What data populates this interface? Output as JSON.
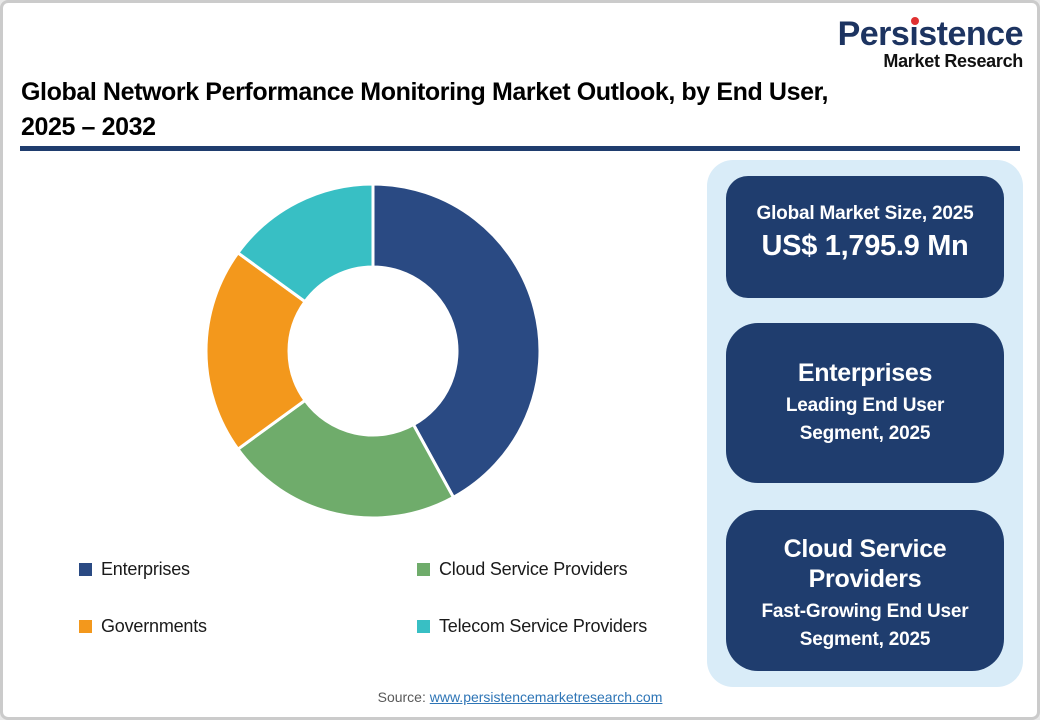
{
  "logo": {
    "name": "Persistence",
    "tagline": "Market Research"
  },
  "title": {
    "line1": "Global Network Performance Monitoring Market Outlook, by End User,",
    "line2": "2025 – 2032"
  },
  "chart_data": {
    "type": "pie",
    "subtype": "donut",
    "title": "Global Network Performance Monitoring Market Outlook, by End User, 2025 – 2032",
    "categories": [
      "Enterprises",
      "Cloud Service Providers",
      "Governments",
      "Telecom Service Providers"
    ],
    "values": [
      42,
      23,
      20,
      15
    ],
    "unit": "% share of 2025 market (estimated from arc angles)",
    "colors": [
      "#2a4a83",
      "#6fac6b",
      "#f3981c",
      "#38bfc4"
    ],
    "start_angle": 0,
    "direction": "clockwise",
    "inner_radius_ratio": 0.5,
    "legend_position": "bottom"
  },
  "cards": [
    {
      "label": "Global Market Size, 2025",
      "value": "US$ 1,795.9 Mn"
    },
    {
      "title": "Enterprises",
      "subtitle": "Leading End User Segment, 2025"
    },
    {
      "title": "Cloud Service Providers",
      "subtitle": "Fast-Growing End User Segment, 2025"
    }
  ],
  "footer": {
    "source_label": "Source:",
    "source_link": "www.persistencemarketresearch.com"
  },
  "colors": {
    "card_navy": "#1f3d6e",
    "panel_light_blue": "#d9ecf8",
    "title_rule": "#1f3d6e",
    "link_blue": "#2e75b6",
    "logo_navy": "#1d3461",
    "logo_dot_red": "#e03131"
  }
}
